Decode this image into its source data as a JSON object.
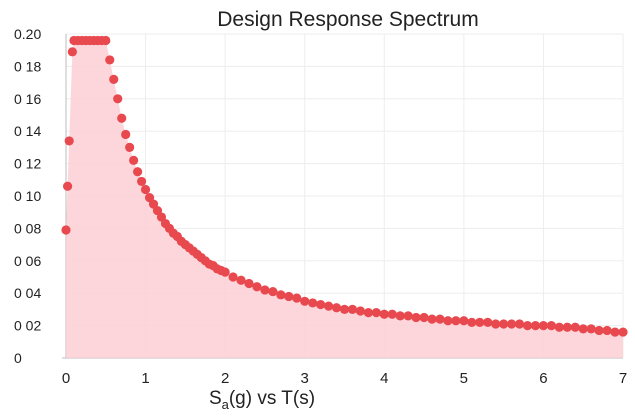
{
  "chart_data": {
    "type": "area",
    "title": "Design Response Spectrum",
    "xlabel_main": "S",
    "xlabel_sub": "a",
    "xlabel_rest": "(g) vs T(s)",
    "xlim": [
      0,
      7
    ],
    "ylim": [
      0,
      0.2
    ],
    "x_ticks": [
      {
        "value": 0,
        "label": "0"
      },
      {
        "value": 1,
        "label": "1"
      },
      {
        "value": 2,
        "label": "2"
      },
      {
        "value": 3,
        "label": "3"
      },
      {
        "value": 4,
        "label": "4"
      },
      {
        "value": 5,
        "label": "5"
      },
      {
        "value": 6,
        "label": "6"
      },
      {
        "value": 7,
        "label": "7"
      }
    ],
    "y_ticks": [
      {
        "value": 0,
        "label": "0"
      },
      {
        "value": 0.02,
        "label": "0 02"
      },
      {
        "value": 0.04,
        "label": "0 04"
      },
      {
        "value": 0.06,
        "label": "0 06"
      },
      {
        "value": 0.08,
        "label": "0 08"
      },
      {
        "value": 0.1,
        "label": "0 10"
      },
      {
        "value": 0.12,
        "label": "0 12"
      },
      {
        "value": 0.14,
        "label": "0 14"
      },
      {
        "value": 0.16,
        "label": "0 16"
      },
      {
        "value": 0.18,
        "label": "0 18"
      },
      {
        "value": 0.2,
        "label": "0.20"
      }
    ],
    "grid": true,
    "colors": {
      "point": "#e8494f",
      "fill": "#fbcfd3",
      "grid": "#ededed",
      "axis": "#bdbdbd",
      "text": "#222222"
    },
    "series": [
      {
        "points": [
          [
            0.0,
            0.079
          ],
          [
            0.02,
            0.106
          ],
          [
            0.04,
            0.134
          ],
          [
            0.08,
            0.189
          ],
          [
            0.1,
            0.196
          ],
          [
            0.15,
            0.196
          ],
          [
            0.2,
            0.196
          ],
          [
            0.25,
            0.196
          ],
          [
            0.3,
            0.196
          ],
          [
            0.35,
            0.196
          ],
          [
            0.4,
            0.196
          ],
          [
            0.45,
            0.196
          ],
          [
            0.5,
            0.196
          ],
          [
            0.55,
            0.184
          ],
          [
            0.6,
            0.172
          ],
          [
            0.65,
            0.16
          ],
          [
            0.7,
            0.148
          ],
          [
            0.75,
            0.138
          ],
          [
            0.8,
            0.13
          ],
          [
            0.85,
            0.122
          ],
          [
            0.9,
            0.115
          ],
          [
            0.95,
            0.109
          ],
          [
            1.0,
            0.104
          ],
          [
            1.05,
            0.099
          ],
          [
            1.1,
            0.095
          ],
          [
            1.15,
            0.091
          ],
          [
            1.2,
            0.087
          ],
          [
            1.25,
            0.083
          ],
          [
            1.3,
            0.08
          ],
          [
            1.35,
            0.077
          ],
          [
            1.4,
            0.075
          ],
          [
            1.45,
            0.072
          ],
          [
            1.5,
            0.07
          ],
          [
            1.55,
            0.068
          ],
          [
            1.6,
            0.066
          ],
          [
            1.65,
            0.064
          ],
          [
            1.7,
            0.062
          ],
          [
            1.75,
            0.06
          ],
          [
            1.8,
            0.058
          ],
          [
            1.85,
            0.057
          ],
          [
            1.9,
            0.055
          ],
          [
            1.95,
            0.054
          ],
          [
            2.0,
            0.053
          ],
          [
            2.1,
            0.05
          ],
          [
            2.2,
            0.048
          ],
          [
            2.3,
            0.046
          ],
          [
            2.4,
            0.044
          ],
          [
            2.5,
            0.042
          ],
          [
            2.6,
            0.041
          ],
          [
            2.7,
            0.039
          ],
          [
            2.8,
            0.038
          ],
          [
            2.9,
            0.037
          ],
          [
            3.0,
            0.035
          ],
          [
            3.1,
            0.034
          ],
          [
            3.2,
            0.033
          ],
          [
            3.3,
            0.032
          ],
          [
            3.4,
            0.031
          ],
          [
            3.5,
            0.03
          ],
          [
            3.6,
            0.03
          ],
          [
            3.7,
            0.029
          ],
          [
            3.8,
            0.028
          ],
          [
            3.9,
            0.028
          ],
          [
            4.0,
            0.027
          ],
          [
            4.1,
            0.027
          ],
          [
            4.2,
            0.026
          ],
          [
            4.3,
            0.026
          ],
          [
            4.4,
            0.025
          ],
          [
            4.5,
            0.025
          ],
          [
            4.6,
            0.024
          ],
          [
            4.7,
            0.024
          ],
          [
            4.8,
            0.023
          ],
          [
            4.9,
            0.023
          ],
          [
            5.0,
            0.023
          ],
          [
            5.1,
            0.022
          ],
          [
            5.2,
            0.022
          ],
          [
            5.3,
            0.022
          ],
          [
            5.4,
            0.021
          ],
          [
            5.5,
            0.021
          ],
          [
            5.6,
            0.021
          ],
          [
            5.7,
            0.021
          ],
          [
            5.8,
            0.02
          ],
          [
            5.9,
            0.02
          ],
          [
            6.0,
            0.02
          ],
          [
            6.1,
            0.02
          ],
          [
            6.2,
            0.019
          ],
          [
            6.3,
            0.019
          ],
          [
            6.4,
            0.019
          ],
          [
            6.5,
            0.018
          ],
          [
            6.6,
            0.018
          ],
          [
            6.7,
            0.017
          ],
          [
            6.8,
            0.017
          ],
          [
            6.9,
            0.016
          ],
          [
            7.0,
            0.016
          ]
        ]
      }
    ]
  }
}
